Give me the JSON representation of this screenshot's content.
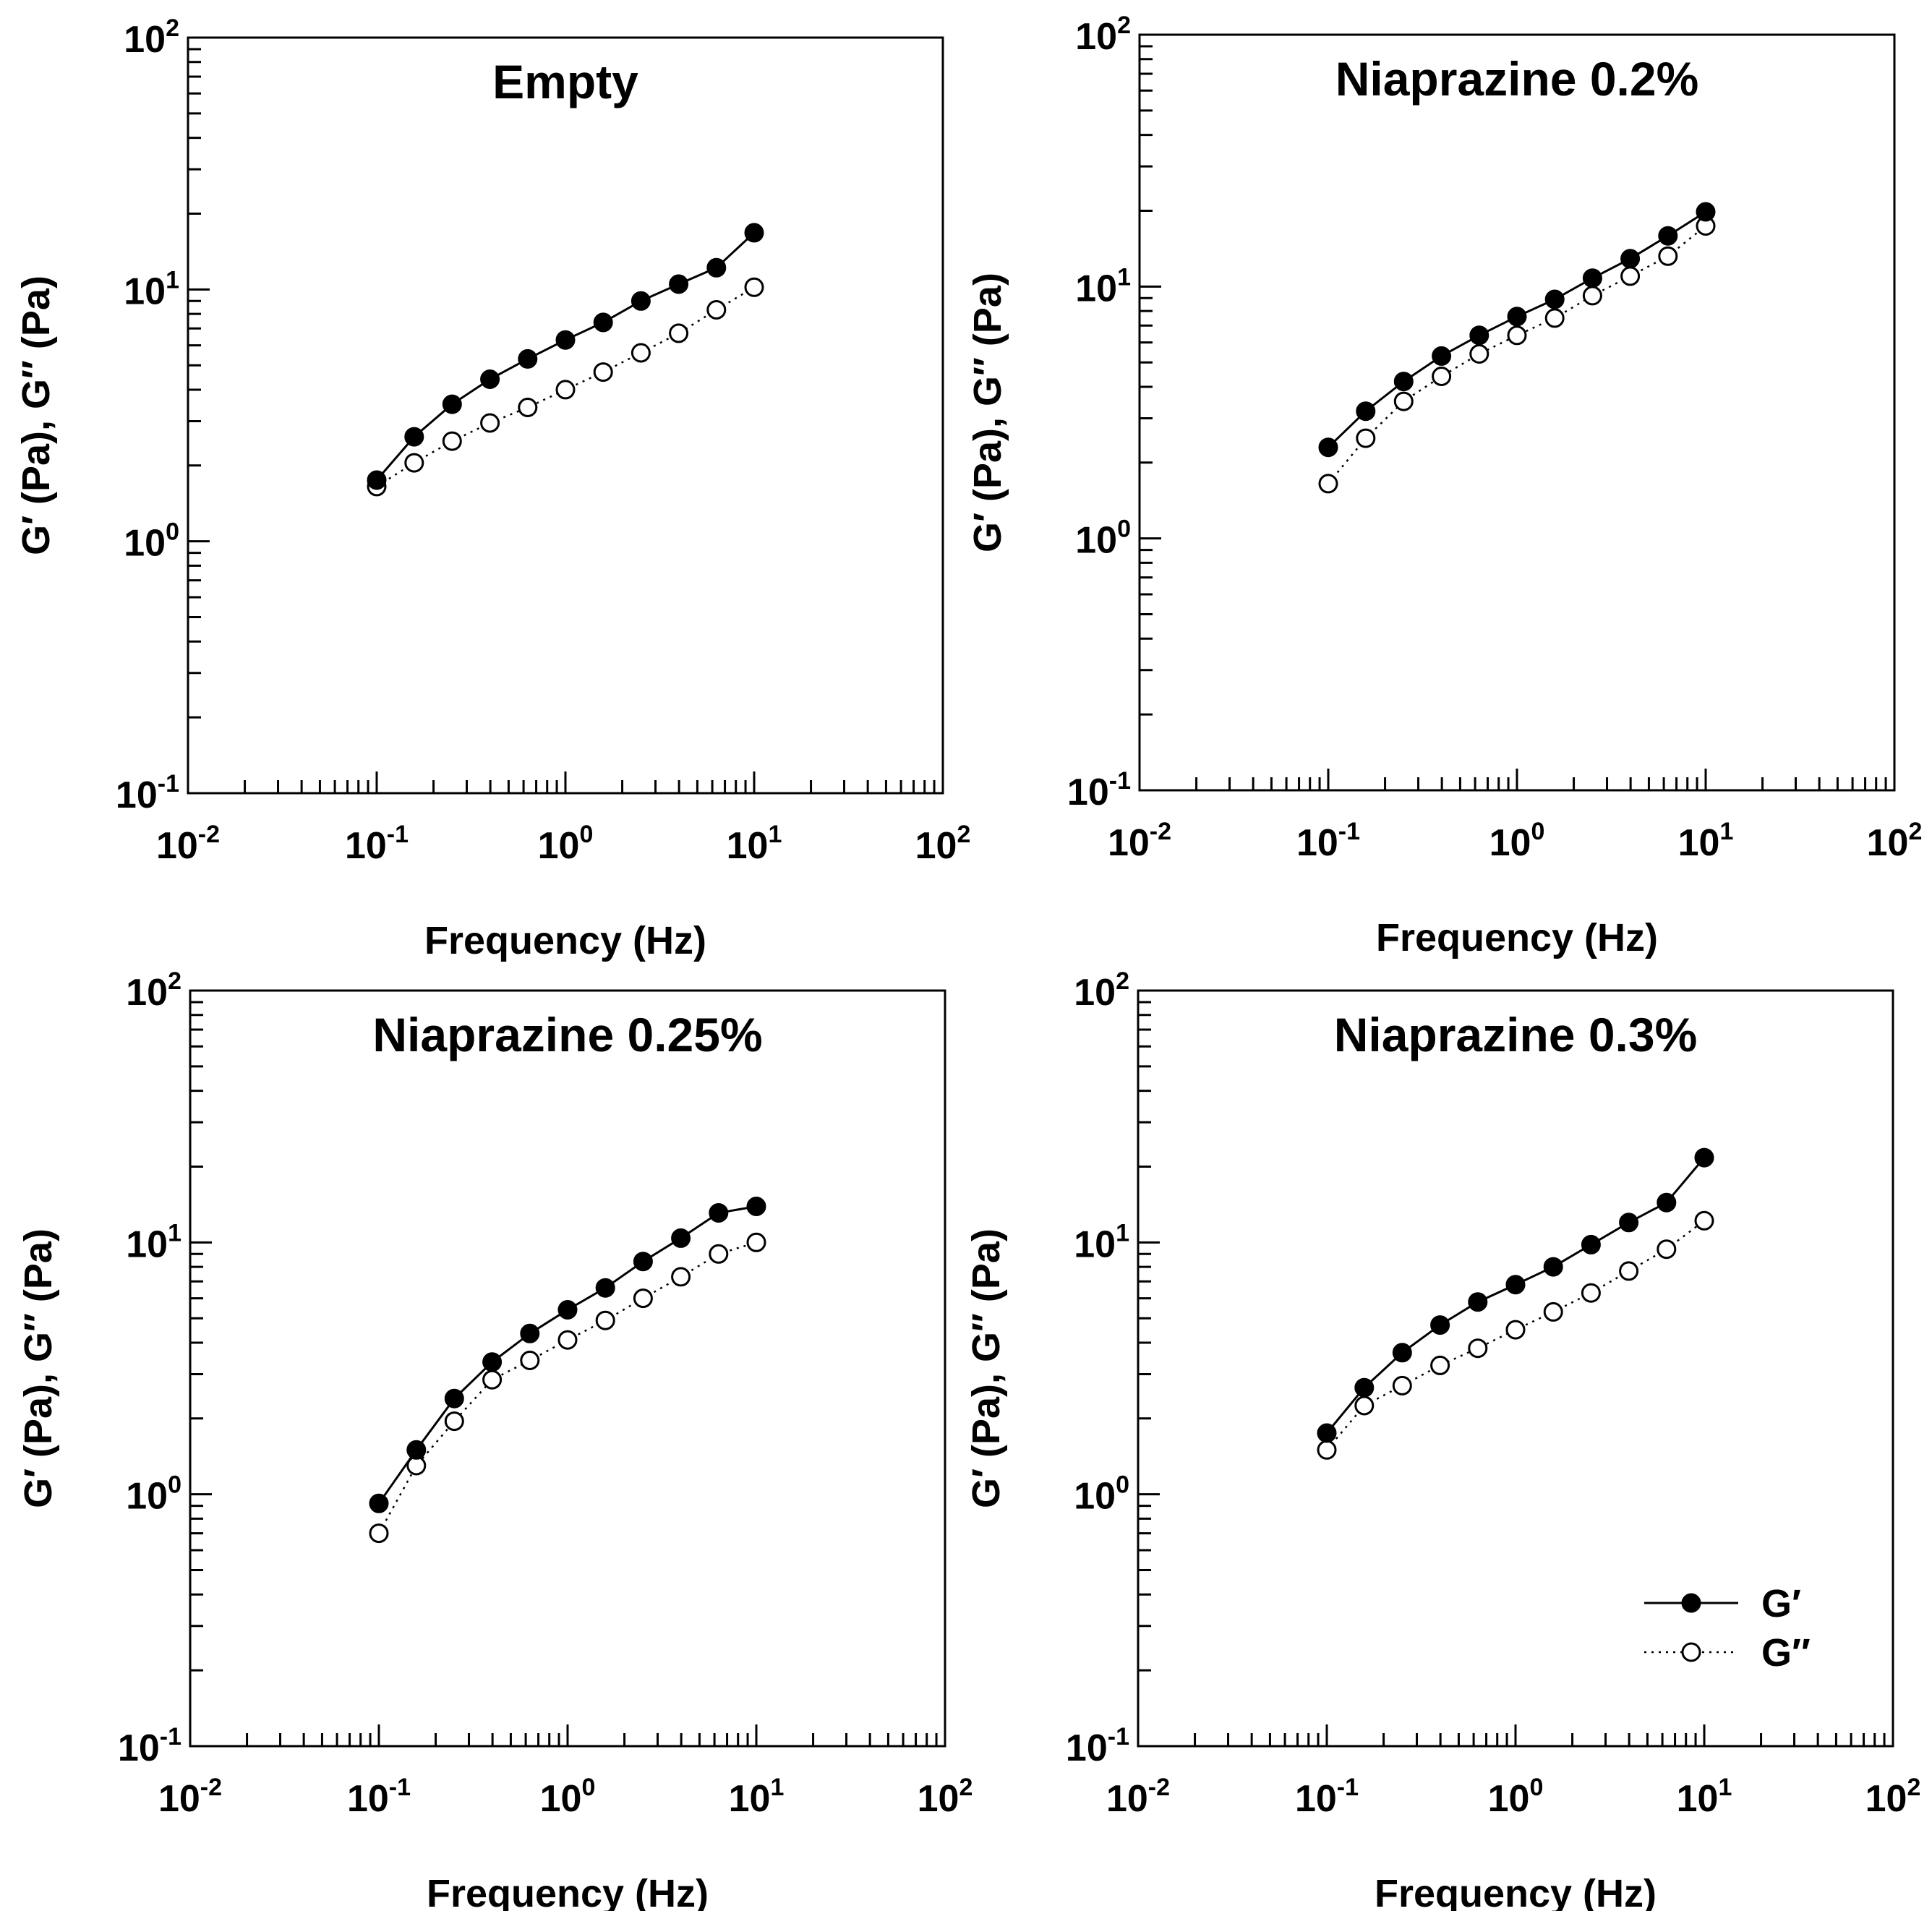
{
  "chart_data": [
    {
      "type": "line",
      "title": "Empty",
      "xlabel": "Frequency (Hz)",
      "ylabel": "G′ (Pa), G″ (Pa)",
      "xscale": "log",
      "yscale": "log",
      "xlim": [
        0.01,
        100
      ],
      "ylim": [
        0.1,
        100
      ],
      "x": [
        0.1,
        0.158,
        0.251,
        0.398,
        0.631,
        1.0,
        1.585,
        2.512,
        3.981,
        6.31,
        10.0
      ],
      "series": [
        {
          "name": "G′",
          "marker": "filled-circle",
          "line": "solid",
          "values": [
            1.75,
            2.6,
            3.5,
            4.4,
            5.3,
            6.3,
            7.4,
            9.0,
            10.5,
            12.2,
            16.8
          ]
        },
        {
          "name": "G″",
          "marker": "open-circle",
          "line": "dotted",
          "values": [
            1.65,
            2.05,
            2.5,
            2.95,
            3.4,
            4.0,
            4.7,
            5.6,
            6.7,
            8.3,
            10.2
          ]
        }
      ],
      "xticks": [
        {
          "base": "10",
          "exp": "-2"
        },
        {
          "base": "10",
          "exp": "-1"
        },
        {
          "base": "10",
          "exp": "0"
        },
        {
          "base": "10",
          "exp": "1"
        },
        {
          "base": "10",
          "exp": "2"
        }
      ],
      "yticks": [
        {
          "base": "10",
          "exp": "-1"
        },
        {
          "base": "10",
          "exp": "0"
        },
        {
          "base": "10",
          "exp": "1"
        },
        {
          "base": "10",
          "exp": "2"
        }
      ]
    },
    {
      "type": "line",
      "title": "Niaprazine 0.2%",
      "xlabel": "Frequency (Hz)",
      "ylabel": "G′ (Pa), G″ (Pa)",
      "xscale": "log",
      "yscale": "log",
      "xlim": [
        0.01,
        100
      ],
      "ylim": [
        0.1,
        100
      ],
      "x": [
        0.1,
        0.158,
        0.251,
        0.398,
        0.631,
        1.0,
        1.585,
        2.512,
        3.981,
        6.31,
        10.0
      ],
      "series": [
        {
          "name": "G′",
          "marker": "filled-circle",
          "line": "solid",
          "values": [
            2.3,
            3.2,
            4.2,
            5.3,
            6.4,
            7.6,
            8.9,
            10.8,
            12.9,
            15.9,
            19.8
          ]
        },
        {
          "name": "G″",
          "marker": "open-circle",
          "line": "dotted",
          "values": [
            1.65,
            2.5,
            3.5,
            4.4,
            5.4,
            6.4,
            7.5,
            9.2,
            11.0,
            13.2,
            17.4
          ]
        }
      ],
      "xticks": [
        {
          "base": "10",
          "exp": "-2"
        },
        {
          "base": "10",
          "exp": "-1"
        },
        {
          "base": "10",
          "exp": "0"
        },
        {
          "base": "10",
          "exp": "1"
        },
        {
          "base": "10",
          "exp": "2"
        }
      ],
      "yticks": [
        {
          "base": "10",
          "exp": "-1"
        },
        {
          "base": "10",
          "exp": "0"
        },
        {
          "base": "10",
          "exp": "1"
        },
        {
          "base": "10",
          "exp": "2"
        }
      ]
    },
    {
      "type": "line",
      "title": "Niaprazine 0.25%",
      "xlabel": "Frequency (Hz)",
      "ylabel": "G′ (Pa), G″ (Pa)",
      "xscale": "log",
      "yscale": "log",
      "xlim": [
        0.01,
        100
      ],
      "ylim": [
        0.1,
        100
      ],
      "x": [
        0.1,
        0.158,
        0.251,
        0.398,
        0.631,
        1.0,
        1.585,
        2.512,
        3.981,
        6.31,
        10.0
      ],
      "series": [
        {
          "name": "G′",
          "marker": "filled-circle",
          "line": "solid",
          "values": [
            0.92,
            1.5,
            2.4,
            3.35,
            4.35,
            5.4,
            6.6,
            8.4,
            10.4,
            13.1,
            13.9
          ]
        },
        {
          "name": "G″",
          "marker": "open-circle",
          "line": "dotted",
          "values": [
            0.7,
            1.3,
            1.95,
            2.85,
            3.4,
            4.1,
            4.9,
            6.0,
            7.3,
            9.0,
            10.0
          ]
        }
      ],
      "xticks": [
        {
          "base": "10",
          "exp": "-2"
        },
        {
          "base": "10",
          "exp": "-1"
        },
        {
          "base": "10",
          "exp": "0"
        },
        {
          "base": "10",
          "exp": "1"
        },
        {
          "base": "10",
          "exp": "2"
        }
      ],
      "yticks": [
        {
          "base": "10",
          "exp": "-1"
        },
        {
          "base": "10",
          "exp": "0"
        },
        {
          "base": "10",
          "exp": "1"
        },
        {
          "base": "10",
          "exp": "2"
        }
      ]
    },
    {
      "type": "line",
      "title": "Niaprazine 0.3%",
      "xlabel": "Frequency (Hz)",
      "ylabel": "G′ (Pa), G″ (Pa)",
      "xscale": "log",
      "yscale": "log",
      "xlim": [
        0.01,
        100
      ],
      "ylim": [
        0.1,
        100
      ],
      "x": [
        0.1,
        0.158,
        0.251,
        0.398,
        0.631,
        1.0,
        1.585,
        2.512,
        3.981,
        6.31,
        10.0
      ],
      "series": [
        {
          "name": "G′",
          "marker": "filled-circle",
          "line": "solid",
          "values": [
            1.75,
            2.65,
            3.65,
            4.7,
            5.8,
            6.8,
            8.0,
            9.8,
            12.0,
            14.4,
            21.7
          ]
        },
        {
          "name": "G″",
          "marker": "open-circle",
          "line": "dotted",
          "values": [
            1.5,
            2.25,
            2.7,
            3.25,
            3.8,
            4.5,
            5.3,
            6.3,
            7.7,
            9.4,
            12.2
          ]
        }
      ],
      "legend": {
        "position": "bottom-right",
        "entries": [
          "G′",
          "G″"
        ]
      },
      "xticks": [
        {
          "base": "10",
          "exp": "-2"
        },
        {
          "base": "10",
          "exp": "-1"
        },
        {
          "base": "10",
          "exp": "0"
        },
        {
          "base": "10",
          "exp": "1"
        },
        {
          "base": "10",
          "exp": "2"
        }
      ],
      "yticks": [
        {
          "base": "10",
          "exp": "-1"
        },
        {
          "base": "10",
          "exp": "0"
        },
        {
          "base": "10",
          "exp": "1"
        },
        {
          "base": "10",
          "exp": "2"
        }
      ]
    }
  ]
}
